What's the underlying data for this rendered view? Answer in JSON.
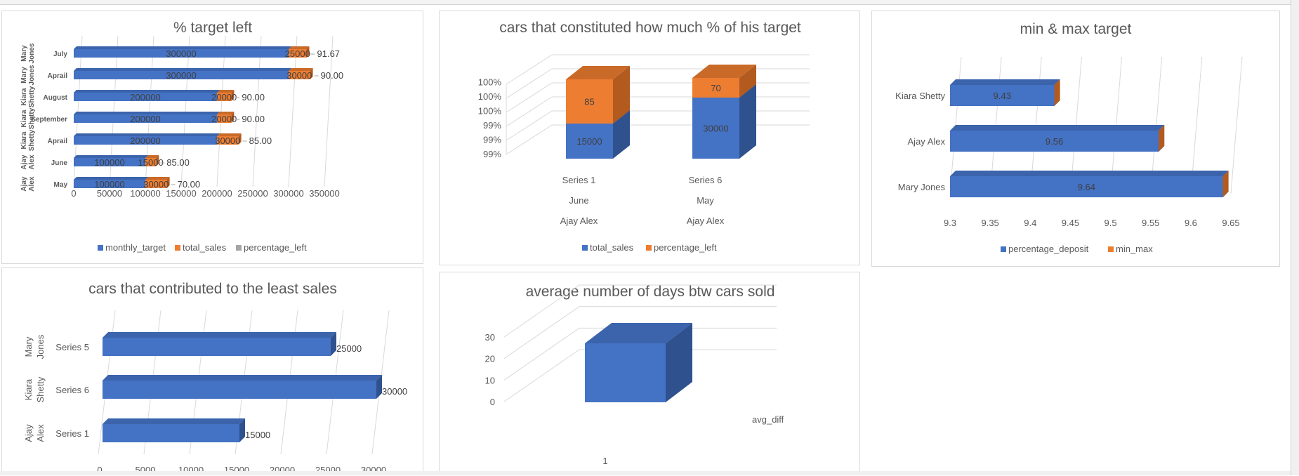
{
  "colors": {
    "blue": "#4472c4",
    "blue_dark": "#2f528f",
    "blue_top": "#3b64ad",
    "orange": "#ed7d31",
    "orange_dark": "#b35a1f",
    "orange_top": "#c96a28",
    "grid": "#d9d9d9",
    "gray": "#a5a5a5"
  },
  "chart_data": [
    {
      "type": "bar",
      "orientation": "horizontal",
      "stacked": true,
      "title": "% target left",
      "categories": [
        {
          "group": [
            "Mary",
            "Jones"
          ],
          "label": "July"
        },
        {
          "group": [
            "Mary",
            "Jones"
          ],
          "label": "Aprail"
        },
        {
          "group": [
            "Kiara",
            "Shetty"
          ],
          "label": "August"
        },
        {
          "group": [
            "Kiara",
            "Shetty"
          ],
          "label": "September"
        },
        {
          "group": [
            "Kiara",
            "Shetty"
          ],
          "label": "Aprail"
        },
        {
          "group": [
            "Ajay",
            "Alex"
          ],
          "label": "June"
        },
        {
          "group": [
            "Ajay",
            "Alex"
          ],
          "label": "May"
        }
      ],
      "series": [
        {
          "name": "monthly_target",
          "values": [
            300000,
            300000,
            200000,
            200000,
            200000,
            100000,
            100000
          ],
          "labels": [
            "300000",
            "300000",
            "200000",
            "200000",
            "200000",
            "100000",
            "100000"
          ]
        },
        {
          "name": "total_sales",
          "values": [
            25000,
            30000,
            20000,
            20000,
            30000,
            15000,
            30000
          ],
          "labels": [
            "25000",
            "30000",
            "20000",
            "20000",
            "30000",
            "15000",
            "30000"
          ]
        },
        {
          "name": "percentage_left",
          "values": [
            91.67,
            90,
            90,
            90,
            85,
            85,
            70
          ],
          "labels": [
            "91.67",
            "90.00",
            "90.00",
            "90.00",
            "85.00",
            "85.00",
            "70.00"
          ]
        }
      ],
      "xlim": [
        0,
        350000
      ],
      "xticks": [
        "0",
        "50000",
        "100000",
        "150000",
        "200000",
        "250000",
        "300000",
        "350000"
      ],
      "legend": "bottom"
    },
    {
      "type": "bar",
      "orientation": "vertical",
      "stacked": true,
      "three_d": true,
      "title": "cars that constituted how much % of his target",
      "categories": [
        {
          "series": "Series 1",
          "month": "June",
          "name": "Ajay Alex"
        },
        {
          "series": "Series 6",
          "month": "May",
          "name": "Ajay Alex"
        }
      ],
      "series": [
        {
          "name": "total_sales",
          "values": [
            15000,
            30000
          ],
          "labels": [
            "15000",
            "30000"
          ]
        },
        {
          "name": "percentage_left",
          "values": [
            85,
            70
          ],
          "labels": [
            "85",
            "70"
          ]
        }
      ],
      "yticks": [
        "99%",
        "99%",
        "99%",
        "100%",
        "100%",
        "100%"
      ],
      "legend": "bottom"
    },
    {
      "type": "bar",
      "orientation": "horizontal",
      "three_d": true,
      "title": "min & max target",
      "categories": [
        "Kiara Shetty",
        "Ajay Alex",
        "Mary Jones"
      ],
      "series": [
        {
          "name": "percentage_deposit",
          "values": [
            9.43,
            9.56,
            9.64
          ],
          "labels": [
            "9.43",
            "9.56",
            "9.64"
          ]
        },
        {
          "name": "min_max",
          "values": [
            0,
            0,
            0
          ]
        }
      ],
      "xlim": [
        9.3,
        9.65
      ],
      "xticks": [
        "9.3",
        "9.35",
        "9.4",
        "9.45",
        "9.5",
        "9.55",
        "9.6",
        "9.65"
      ],
      "legend": "bottom"
    },
    {
      "type": "bar",
      "orientation": "horizontal",
      "three_d": true,
      "title": "cars that contributed to the least sales",
      "categories": [
        {
          "group": [
            "Mary",
            "Jones"
          ],
          "label": "Series 5"
        },
        {
          "group": [
            "Kiara",
            "Shetty"
          ],
          "label": "Series 6"
        },
        {
          "group": [
            "Ajay",
            "Alex"
          ],
          "label": "Series 1"
        }
      ],
      "values": [
        25000,
        30000,
        15000
      ],
      "labels": [
        "25000",
        "30000",
        "15000"
      ],
      "xlim": [
        0,
        30000
      ],
      "xticks": [
        "0",
        "5000",
        "10000",
        "15000",
        "20000",
        "25000",
        "30000"
      ]
    },
    {
      "type": "bar",
      "orientation": "vertical",
      "three_d": true,
      "title": "average number of days btw cars sold",
      "categories": [
        "1"
      ],
      "series": [
        {
          "name": "avg_diff",
          "values": [
            23
          ]
        }
      ],
      "ylim": [
        0,
        30
      ],
      "yticks": [
        "0",
        "10",
        "20",
        "30"
      ],
      "legend": "right"
    }
  ]
}
